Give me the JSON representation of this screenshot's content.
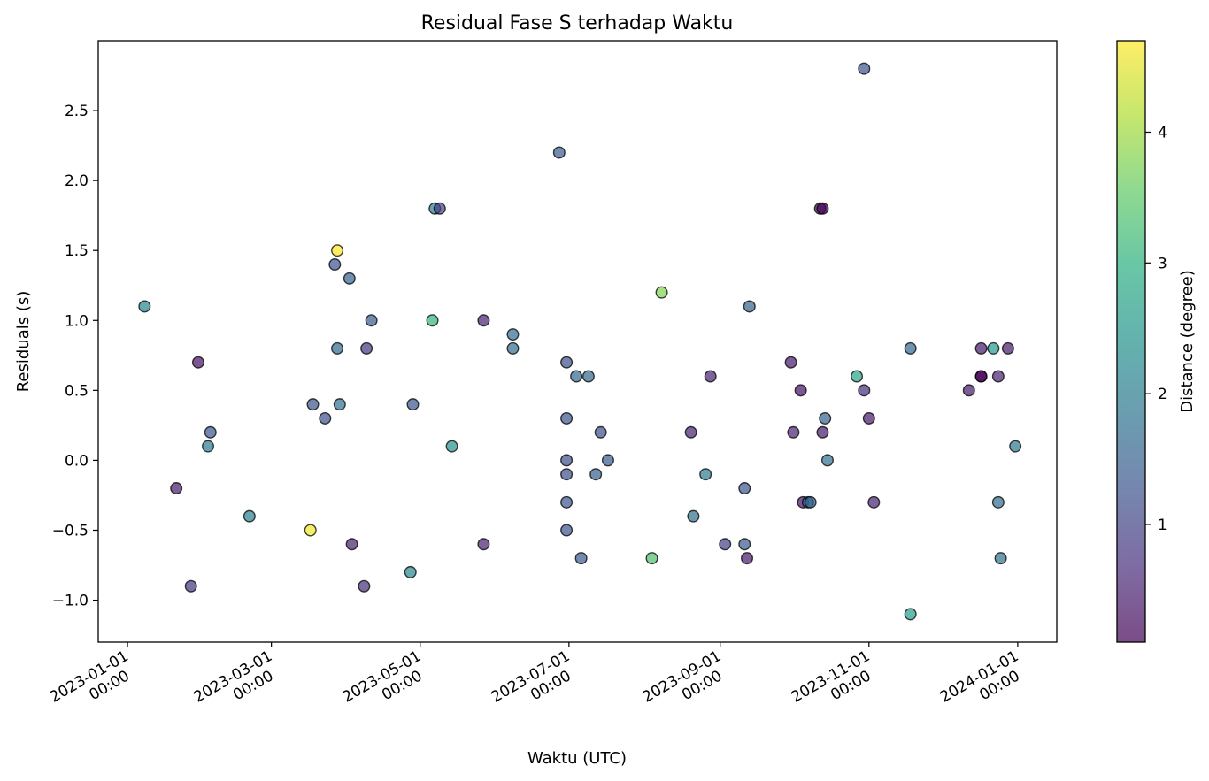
{
  "chart_data": {
    "type": "scatter",
    "title": "Residual Fase S terhadap Waktu",
    "xlabel": "Waktu (UTC)",
    "ylabel": "Residuals (s)",
    "colorbar_label": "Distance (degree)",
    "x_ticks": [
      "2023-01-01 00:00",
      "2023-03-01 00:00",
      "2023-05-01 00:00",
      "2023-07-01 00:00",
      "2023-09-01 00:00",
      "2023-11-01 00:00",
      "2024-01-01 00:00"
    ],
    "y_ticks": [
      "−1.0",
      "−0.5",
      "0.0",
      "0.5",
      "1.0",
      "1.5",
      "2.0",
      "2.5"
    ],
    "colorbar_ticks": [
      "1",
      "2",
      "3",
      "4"
    ],
    "xlim": [
      "2022-12-20",
      "2024-01-17"
    ],
    "ylim": [
      -1.3,
      3.0
    ],
    "clim": [
      0.1,
      4.7
    ],
    "colormap": "viridis",
    "marker_alpha": 0.7,
    "grid": false,
    "points": [
      {
        "x": "2023-01-08",
        "y": 1.1,
        "d": 2.2
      },
      {
        "x": "2023-01-21",
        "y": -0.2,
        "d": 0.4
      },
      {
        "x": "2023-01-27",
        "y": -0.9,
        "d": 0.8
      },
      {
        "x": "2023-01-30",
        "y": 0.7,
        "d": 0.3
      },
      {
        "x": "2023-02-03",
        "y": 0.1,
        "d": 2.0
      },
      {
        "x": "2023-02-04",
        "y": 0.2,
        "d": 1.3
      },
      {
        "x": "2023-02-20",
        "y": -0.4,
        "d": 2.1
      },
      {
        "x": "2023-03-17",
        "y": -0.5,
        "d": 4.6
      },
      {
        "x": "2023-03-18",
        "y": 0.4,
        "d": 1.3
      },
      {
        "x": "2023-03-23",
        "y": 0.3,
        "d": 1.2
      },
      {
        "x": "2023-03-27",
        "y": 1.4,
        "d": 1.3
      },
      {
        "x": "2023-03-28",
        "y": 1.5,
        "d": 4.7
      },
      {
        "x": "2023-03-28",
        "y": 0.8,
        "d": 1.6
      },
      {
        "x": "2023-03-29",
        "y": 0.4,
        "d": 1.8
      },
      {
        "x": "2023-04-02",
        "y": 1.3,
        "d": 1.5
      },
      {
        "x": "2023-04-03",
        "y": -0.6,
        "d": 0.5
      },
      {
        "x": "2023-04-08",
        "y": -0.9,
        "d": 0.7
      },
      {
        "x": "2023-04-09",
        "y": 0.8,
        "d": 0.8
      },
      {
        "x": "2023-04-11",
        "y": 1.0,
        "d": 1.4
      },
      {
        "x": "2023-04-27",
        "y": -0.8,
        "d": 2.2
      },
      {
        "x": "2023-04-28",
        "y": 0.4,
        "d": 1.3
      },
      {
        "x": "2023-05-06",
        "y": 1.0,
        "d": 3.1
      },
      {
        "x": "2023-05-07",
        "y": 1.8,
        "d": 2.0
      },
      {
        "x": "2023-05-09",
        "y": 1.8,
        "d": 1.0
      },
      {
        "x": "2023-05-14",
        "y": 0.1,
        "d": 2.4
      },
      {
        "x": "2023-05-27",
        "y": -0.6,
        "d": 0.5
      },
      {
        "x": "2023-05-27",
        "y": 1.0,
        "d": 0.5
      },
      {
        "x": "2023-06-08",
        "y": 0.9,
        "d": 1.7
      },
      {
        "x": "2023-06-08",
        "y": 0.8,
        "d": 1.7
      },
      {
        "x": "2023-06-27",
        "y": 2.2,
        "d": 1.4
      },
      {
        "x": "2023-06-30",
        "y": 0.7,
        "d": 1.2
      },
      {
        "x": "2023-06-30",
        "y": 0.3,
        "d": 1.3
      },
      {
        "x": "2023-06-30",
        "y": 0.0,
        "d": 1.2
      },
      {
        "x": "2023-06-30",
        "y": -0.1,
        "d": 1.2
      },
      {
        "x": "2023-06-30",
        "y": -0.3,
        "d": 1.3
      },
      {
        "x": "2023-06-30",
        "y": -0.5,
        "d": 1.3
      },
      {
        "x": "2023-07-04",
        "y": 0.6,
        "d": 1.6
      },
      {
        "x": "2023-07-06",
        "y": -0.7,
        "d": 1.4
      },
      {
        "x": "2023-07-09",
        "y": 0.6,
        "d": 1.6
      },
      {
        "x": "2023-07-12",
        "y": -0.1,
        "d": 1.5
      },
      {
        "x": "2023-07-14",
        "y": 0.2,
        "d": 1.2
      },
      {
        "x": "2023-07-17",
        "y": 0.0,
        "d": 1.4
      },
      {
        "x": "2023-08-04",
        "y": -0.7,
        "d": 3.4
      },
      {
        "x": "2023-08-08",
        "y": 1.2,
        "d": 3.8
      },
      {
        "x": "2023-08-20",
        "y": 0.2,
        "d": 0.5
      },
      {
        "x": "2023-08-21",
        "y": -0.4,
        "d": 1.8
      },
      {
        "x": "2023-08-26",
        "y": -0.1,
        "d": 2.0
      },
      {
        "x": "2023-08-28",
        "y": 0.6,
        "d": 0.5
      },
      {
        "x": "2023-09-03",
        "y": -0.6,
        "d": 1.0
      },
      {
        "x": "2023-09-11",
        "y": -0.2,
        "d": 1.3
      },
      {
        "x": "2023-09-11",
        "y": -0.6,
        "d": 1.4
      },
      {
        "x": "2023-09-12",
        "y": -0.7,
        "d": 0.4
      },
      {
        "x": "2023-09-13",
        "y": 1.1,
        "d": 1.5
      },
      {
        "x": "2023-09-30",
        "y": 0.7,
        "d": 0.4
      },
      {
        "x": "2023-10-01",
        "y": 0.2,
        "d": 0.5
      },
      {
        "x": "2023-10-04",
        "y": 0.5,
        "d": 0.3
      },
      {
        "x": "2023-10-05",
        "y": -0.3,
        "d": 0.3
      },
      {
        "x": "2023-10-07",
        "y": -0.3,
        "d": 1.8
      },
      {
        "x": "2023-10-08",
        "y": -0.3,
        "d": 1.5
      },
      {
        "x": "2023-10-12",
        "y": 1.8,
        "d": 0.3
      },
      {
        "x": "2023-10-13",
        "y": 1.8,
        "d": 0.1
      },
      {
        "x": "2023-10-13",
        "y": 0.2,
        "d": 0.4
      },
      {
        "x": "2023-10-14",
        "y": 0.3,
        "d": 1.5
      },
      {
        "x": "2023-10-15",
        "y": 0.0,
        "d": 1.8
      },
      {
        "x": "2023-10-27",
        "y": 0.6,
        "d": 2.8
      },
      {
        "x": "2023-10-30",
        "y": 0.5,
        "d": 0.7
      },
      {
        "x": "2023-10-30",
        "y": 2.8,
        "d": 1.3
      },
      {
        "x": "2023-11-01",
        "y": 0.3,
        "d": 0.4
      },
      {
        "x": "2023-11-03",
        "y": -0.3,
        "d": 0.5
      },
      {
        "x": "2023-11-18",
        "y": 0.8,
        "d": 1.6
      },
      {
        "x": "2023-11-18",
        "y": -1.1,
        "d": 2.7
      },
      {
        "x": "2023-12-12",
        "y": 0.5,
        "d": 0.4
      },
      {
        "x": "2023-12-17",
        "y": 0.8,
        "d": 0.4
      },
      {
        "x": "2023-12-17",
        "y": 0.6,
        "d": 0.2
      },
      {
        "x": "2023-12-17",
        "y": 0.6,
        "d": 0.1
      },
      {
        "x": "2023-12-22",
        "y": 0.8,
        "d": 2.6
      },
      {
        "x": "2023-12-24",
        "y": 0.6,
        "d": 0.5
      },
      {
        "x": "2023-12-24",
        "y": -0.3,
        "d": 1.7
      },
      {
        "x": "2023-12-25",
        "y": -0.7,
        "d": 1.8
      },
      {
        "x": "2023-12-28",
        "y": 0.8,
        "d": 0.4
      },
      {
        "x": "2023-12-31",
        "y": 0.1,
        "d": 1.9
      }
    ]
  }
}
